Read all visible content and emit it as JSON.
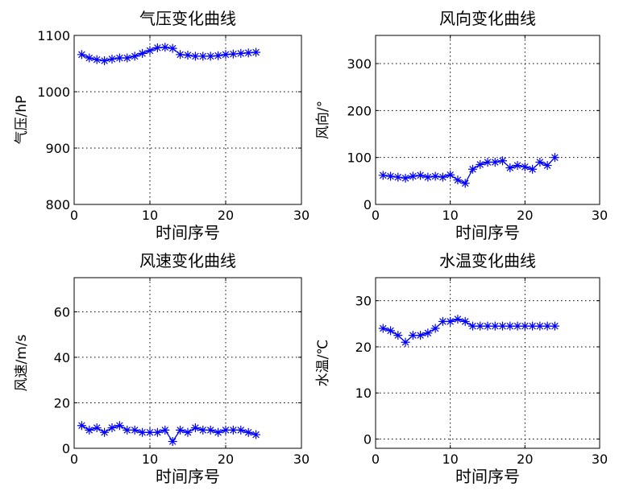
{
  "chart_data": [
    {
      "type": "line",
      "title": "气压变化曲线",
      "xlabel": "时间序号",
      "ylabel": "气压/hP",
      "xlim": [
        0,
        30
      ],
      "ylim": [
        800,
        1100
      ],
      "xticks": [
        0,
        10,
        20,
        30
      ],
      "yticks": [
        800,
        900,
        1000,
        1100
      ],
      "grid": true,
      "marker": "*",
      "color": "#0000ff",
      "x": [
        1,
        2,
        3,
        4,
        5,
        6,
        7,
        8,
        9,
        10,
        11,
        12,
        13,
        14,
        15,
        16,
        17,
        18,
        19,
        20,
        21,
        22,
        23,
        24
      ],
      "values": [
        1066,
        1060,
        1057,
        1055,
        1058,
        1060,
        1060,
        1063,
        1068,
        1073,
        1078,
        1079,
        1077,
        1066,
        1065,
        1063,
        1063,
        1063,
        1064,
        1066,
        1067,
        1068,
        1069,
        1070
      ]
    },
    {
      "type": "line",
      "title": "风向变化曲线",
      "xlabel": "时间序号",
      "ylabel": "风向/°",
      "xlim": [
        0,
        30
      ],
      "ylim": [
        0,
        360
      ],
      "xticks": [
        0,
        10,
        20,
        30
      ],
      "yticks": [
        0,
        100,
        200,
        300
      ],
      "grid": true,
      "marker": "*",
      "color": "#0000ff",
      "x": [
        1,
        2,
        3,
        4,
        5,
        6,
        7,
        8,
        9,
        10,
        11,
        12,
        13,
        14,
        15,
        16,
        17,
        18,
        19,
        20,
        21,
        22,
        23,
        24
      ],
      "values": [
        62,
        60,
        58,
        56,
        60,
        62,
        58,
        60,
        58,
        63,
        52,
        45,
        75,
        85,
        90,
        90,
        93,
        78,
        83,
        80,
        75,
        90,
        83,
        100
      ]
    },
    {
      "type": "line",
      "title": "风速变化曲线",
      "xlabel": "时间序号",
      "ylabel": "风速/m/s",
      "xlim": [
        0,
        30
      ],
      "ylim": [
        0,
        75
      ],
      "xticks": [
        0,
        10,
        20,
        30
      ],
      "yticks": [
        0,
        20,
        40,
        60
      ],
      "grid": true,
      "marker": "*",
      "color": "#0000ff",
      "x": [
        1,
        2,
        3,
        4,
        5,
        6,
        7,
        8,
        9,
        10,
        11,
        12,
        13,
        14,
        15,
        16,
        17,
        18,
        19,
        20,
        21,
        22,
        23,
        24
      ],
      "values": [
        10,
        8,
        9,
        7,
        9,
        10,
        8,
        8,
        7,
        7,
        7,
        8,
        3,
        8,
        7,
        9,
        8,
        8,
        7,
        8,
        8,
        8,
        7,
        6
      ]
    },
    {
      "type": "line",
      "title": "水温变化曲线",
      "xlabel": "时间序号",
      "ylabel": "水温/℃",
      "xlim": [
        0,
        30
      ],
      "ylim": [
        -2,
        35
      ],
      "xticks": [
        0,
        10,
        20,
        30
      ],
      "yticks": [
        0,
        10,
        20,
        30
      ],
      "grid": true,
      "marker": "*",
      "color": "#0000ff",
      "x": [
        1,
        2,
        3,
        4,
        5,
        6,
        7,
        8,
        9,
        10,
        11,
        12,
        13,
        14,
        15,
        16,
        17,
        18,
        19,
        20,
        21,
        22,
        23,
        24
      ],
      "values": [
        24,
        23.5,
        22.5,
        21,
        22.5,
        22.5,
        23,
        24,
        25.5,
        25.5,
        26,
        25.5,
        24.5,
        24.5,
        24.5,
        24.5,
        24.5,
        24.5,
        24.5,
        24.5,
        24.5,
        24.5,
        24.5,
        24.5
      ]
    }
  ]
}
